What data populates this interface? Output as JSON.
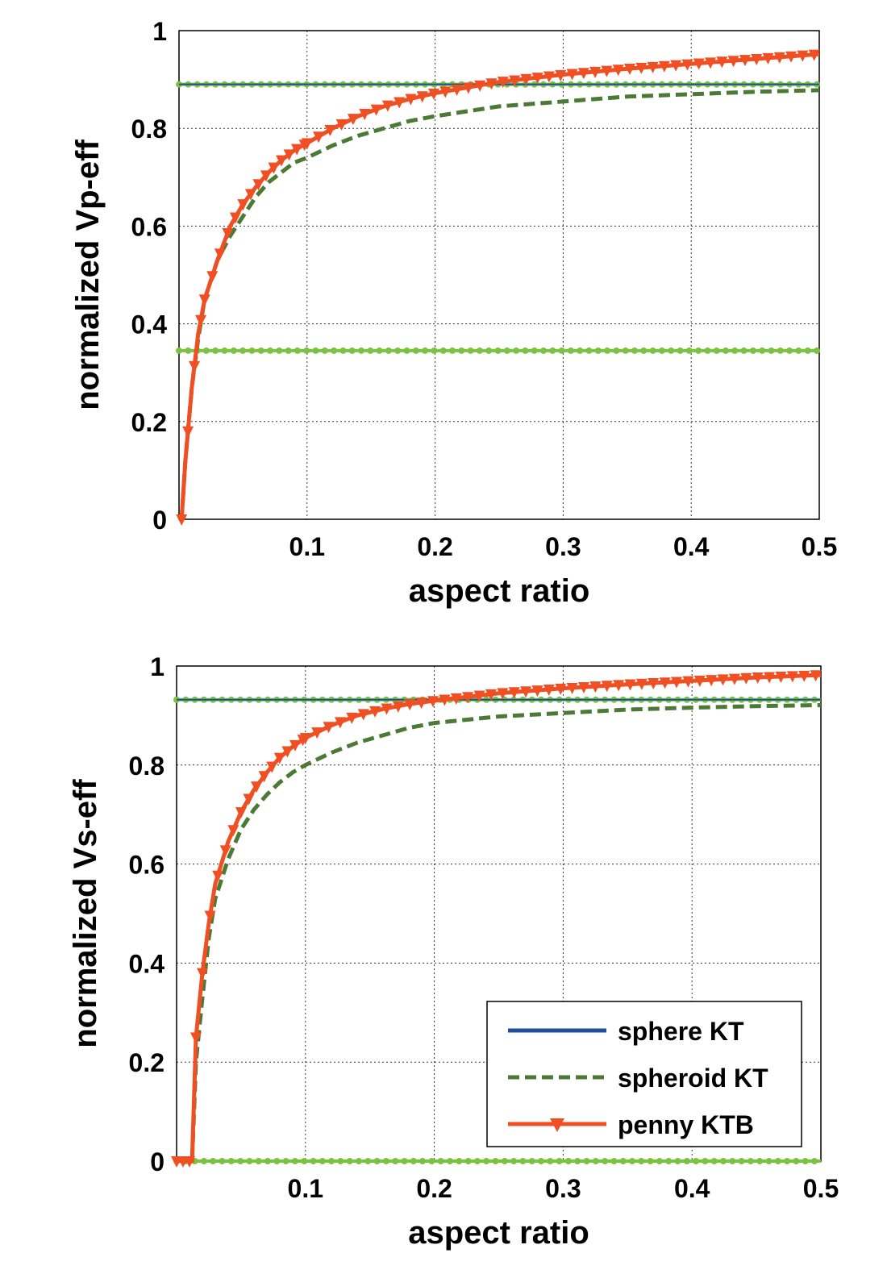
{
  "chart_data": [
    {
      "type": "line",
      "xlabel": "aspect ratio",
      "ylabel": "normalized Vp-eff",
      "xlim": [
        0,
        0.5
      ],
      "ylim": [
        0,
        1
      ],
      "xticks": [
        "0.1",
        "0.2",
        "0.3",
        "0.4",
        "0.5"
      ],
      "yticks": [
        "0",
        "0.2",
        "0.4",
        "0.6",
        "0.8",
        "1"
      ],
      "grid": true,
      "legend": null,
      "colors": {
        "sphere": "#1f4e9c",
        "spheroid": "#4a7a35",
        "penny": "#f04e23",
        "bound": "#7cc242"
      },
      "series": [
        {
          "key": "sphere",
          "values": [
            [
              0.0,
              0.89
            ],
            [
              0.5,
              0.89
            ]
          ]
        },
        {
          "key": "bound_upper",
          "values": [
            [
              0.0,
              0.89
            ],
            [
              0.5,
              0.89
            ]
          ]
        },
        {
          "key": "bound_lower",
          "values": [
            [
              0.0,
              0.345
            ],
            [
              0.5,
              0.345
            ]
          ]
        },
        {
          "key": "spheroid",
          "values": [
            [
              0.002,
              0.0
            ],
            [
              0.005,
              0.12
            ],
            [
              0.01,
              0.27
            ],
            [
              0.015,
              0.37
            ],
            [
              0.02,
              0.45
            ],
            [
              0.03,
              0.53
            ],
            [
              0.04,
              0.58
            ],
            [
              0.05,
              0.62
            ],
            [
              0.06,
              0.66
            ],
            [
              0.07,
              0.69
            ],
            [
              0.08,
              0.71
            ],
            [
              0.09,
              0.73
            ],
            [
              0.1,
              0.74
            ],
            [
              0.12,
              0.765
            ],
            [
              0.14,
              0.785
            ],
            [
              0.16,
              0.8
            ],
            [
              0.18,
              0.815
            ],
            [
              0.2,
              0.825
            ],
            [
              0.25,
              0.845
            ],
            [
              0.3,
              0.855
            ],
            [
              0.35,
              0.865
            ],
            [
              0.4,
              0.87
            ],
            [
              0.45,
              0.875
            ],
            [
              0.5,
              0.878
            ]
          ]
        },
        {
          "key": "penny",
          "values": [
            [
              0.002,
              0.0
            ],
            [
              0.005,
              0.12
            ],
            [
              0.01,
              0.27
            ],
            [
              0.015,
              0.38
            ],
            [
              0.02,
              0.45
            ],
            [
              0.03,
              0.53
            ],
            [
              0.04,
              0.6
            ],
            [
              0.05,
              0.645
            ],
            [
              0.06,
              0.68
            ],
            [
              0.07,
              0.71
            ],
            [
              0.08,
              0.735
            ],
            [
              0.09,
              0.755
            ],
            [
              0.1,
              0.77
            ],
            [
              0.12,
              0.8
            ],
            [
              0.14,
              0.825
            ],
            [
              0.16,
              0.845
            ],
            [
              0.18,
              0.86
            ],
            [
              0.2,
              0.872
            ],
            [
              0.25,
              0.895
            ],
            [
              0.3,
              0.91
            ],
            [
              0.35,
              0.922
            ],
            [
              0.4,
              0.932
            ],
            [
              0.45,
              0.942
            ],
            [
              0.5,
              0.952
            ]
          ]
        }
      ]
    },
    {
      "type": "line",
      "xlabel": "aspect ratio",
      "ylabel": "normalized Vs-eff",
      "xlim": [
        0,
        0.5
      ],
      "ylim": [
        0,
        1
      ],
      "xticks": [
        "0.1",
        "0.2",
        "0.3",
        "0.4",
        "0.5"
      ],
      "yticks": [
        "0",
        "0.2",
        "0.4",
        "0.6",
        "0.8",
        "1"
      ],
      "grid": true,
      "legend": "bottom-right",
      "colors": {
        "sphere": "#1f4e9c",
        "spheroid": "#4a7a35",
        "penny": "#f04e23",
        "bound": "#7cc242"
      },
      "series": [
        {
          "key": "sphere",
          "name": "sphere KT",
          "values": [
            [
              0.0,
              0.932
            ],
            [
              0.5,
              0.932
            ]
          ]
        },
        {
          "key": "bound_upper",
          "values": [
            [
              0.0,
              0.932
            ],
            [
              0.5,
              0.932
            ]
          ]
        },
        {
          "key": "bound_lower",
          "values": [
            [
              0.0,
              0.0
            ],
            [
              0.5,
              0.0
            ]
          ]
        },
        {
          "key": "spheroid",
          "name": "spheroid KT",
          "values": [
            [
              0.0,
              0.0
            ],
            [
              0.012,
              0.0
            ],
            [
              0.015,
              0.2
            ],
            [
              0.02,
              0.33
            ],
            [
              0.025,
              0.45
            ],
            [
              0.03,
              0.53
            ],
            [
              0.04,
              0.61
            ],
            [
              0.05,
              0.67
            ],
            [
              0.06,
              0.71
            ],
            [
              0.07,
              0.74
            ],
            [
              0.08,
              0.765
            ],
            [
              0.09,
              0.785
            ],
            [
              0.1,
              0.8
            ],
            [
              0.12,
              0.825
            ],
            [
              0.14,
              0.845
            ],
            [
              0.16,
              0.86
            ],
            [
              0.18,
              0.875
            ],
            [
              0.2,
              0.885
            ],
            [
              0.25,
              0.898
            ],
            [
              0.3,
              0.905
            ],
            [
              0.35,
              0.912
            ],
            [
              0.4,
              0.916
            ],
            [
              0.45,
              0.919
            ],
            [
              0.5,
              0.921
            ]
          ]
        },
        {
          "key": "penny",
          "name": "penny KTB",
          "values": [
            [
              0.0,
              0.0
            ],
            [
              0.012,
              0.0
            ],
            [
              0.015,
              0.25
            ],
            [
              0.02,
              0.38
            ],
            [
              0.025,
              0.48
            ],
            [
              0.03,
              0.56
            ],
            [
              0.04,
              0.645
            ],
            [
              0.05,
              0.705
            ],
            [
              0.06,
              0.75
            ],
            [
              0.07,
              0.785
            ],
            [
              0.08,
              0.815
            ],
            [
              0.09,
              0.837
            ],
            [
              0.1,
              0.855
            ],
            [
              0.12,
              0.88
            ],
            [
              0.14,
              0.9
            ],
            [
              0.16,
              0.913
            ],
            [
              0.18,
              0.923
            ],
            [
              0.2,
              0.93
            ],
            [
              0.25,
              0.945
            ],
            [
              0.3,
              0.955
            ],
            [
              0.35,
              0.963
            ],
            [
              0.4,
              0.97
            ],
            [
              0.45,
              0.977
            ],
            [
              0.5,
              0.982
            ]
          ]
        }
      ]
    }
  ]
}
